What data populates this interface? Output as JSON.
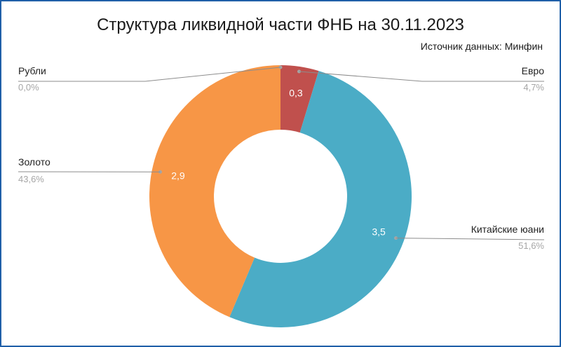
{
  "chart_data": {
    "type": "pie",
    "variant": "donut",
    "title": "Структура ликвидной части ФНБ на 30.11.2023",
    "source": "Источник данных: Минфин",
    "slices": [
      {
        "name": "Рубли",
        "value_label": "",
        "percent_label": "0,0%",
        "percent": 0.0,
        "color": "#4472c4"
      },
      {
        "name": "Евро",
        "value": 0.3,
        "value_label": "0,3",
        "percent_label": "4,7%",
        "percent": 4.7,
        "color": "#c0504d"
      },
      {
        "name": "Китайские юани",
        "value": 3.5,
        "value_label": "3,5",
        "percent_label": "51,6%",
        "percent": 51.6,
        "color": "#4bacc6"
      },
      {
        "name": "Золото",
        "value": 2.9,
        "value_label": "2,9",
        "percent_label": "43,6%",
        "percent": 43.6,
        "color": "#f79646"
      }
    ]
  }
}
